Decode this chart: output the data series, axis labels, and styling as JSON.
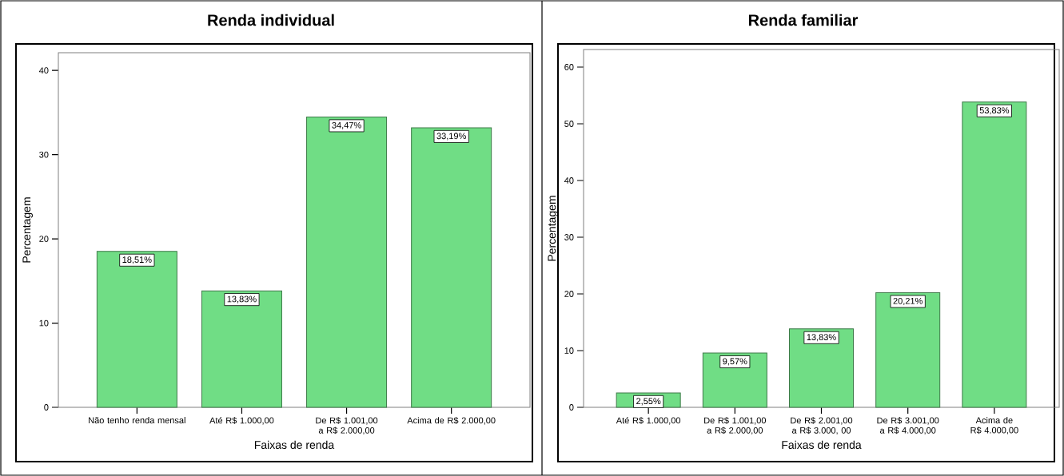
{
  "chart_data": [
    {
      "type": "bar",
      "title": "Renda individual",
      "xlabel": "Faixas de renda",
      "ylabel": "Percentagem",
      "categories": [
        "Não tenho renda mensal",
        "Até R$ 1.000,00",
        "De R$ 1.001,00 a R$ 2.000,00",
        "Acima de R$ 2.000,00"
      ],
      "values": [
        18.51,
        13.83,
        34.47,
        33.19
      ],
      "value_labels": [
        "18,51%",
        "13,83%",
        "34,47%",
        "33,19%"
      ],
      "color": "#70dd85",
      "ylim": [
        0,
        42.1
      ],
      "yticks": [
        0,
        10,
        20,
        30,
        40
      ]
    },
    {
      "type": "bar",
      "title": "Renda familiar",
      "xlabel": "Faixas de renda",
      "ylabel": "Percentagem",
      "categories": [
        "Até R$ 1.000,00",
        "De R$ 1.001,00 a R$ 2.000,00",
        "De R$ 2.001,00 a R$ 3.000, 00",
        "De R$ 3.001,00 a R$ 4.000,00",
        "Acima de R$ 4.000,00"
      ],
      "values": [
        2.55,
        9.57,
        13.83,
        20.21,
        53.83
      ],
      "value_labels": [
        "2,55%",
        "9,57%",
        "13,83%",
        "20,21%",
        "53,83%"
      ],
      "color": "#70dd85",
      "ylim": [
        0,
        63.1
      ],
      "yticks": [
        0,
        10,
        20,
        30,
        40,
        50,
        60
      ]
    }
  ]
}
